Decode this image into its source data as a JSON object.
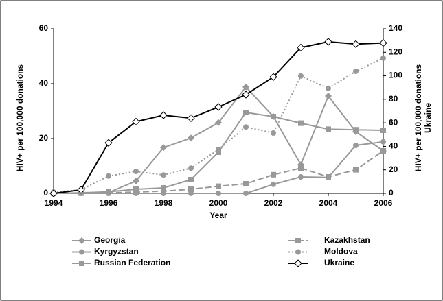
{
  "chart_data": {
    "type": "line",
    "xlabel": "Year",
    "ylabel": "HIV+ per 100,000 donations",
    "y2label": [
      "HIV+ per 100,000 donations",
      "Ukraine"
    ],
    "x": [
      1994,
      1995,
      1996,
      1997,
      1998,
      1999,
      2000,
      2001,
      2002,
      2003,
      2004,
      2005,
      2006
    ],
    "xlim": [
      1994,
      2006
    ],
    "xticks": [
      1994,
      1996,
      1998,
      2000,
      2002,
      2004,
      2006
    ],
    "ylim": [
      0,
      60
    ],
    "yticks": [
      0,
      20,
      40,
      60
    ],
    "y2lim": [
      0,
      140
    ],
    "y2ticks": [
      0,
      20,
      40,
      60,
      80,
      100,
      120,
      140
    ],
    "grid": false,
    "series": [
      {
        "name": "Georgia",
        "color": "#999999",
        "marker": "diamond",
        "dash": "solid",
        "values": [
          0,
          0.2,
          0.3,
          4.5,
          16.7,
          20.2,
          25.8,
          38.8,
          28,
          10.5,
          35.5,
          22.5,
          15.5
        ]
      },
      {
        "name": "Kazakhstan",
        "color": "#999999",
        "marker": "square",
        "dash": "dashed",
        "values": [
          0,
          0.1,
          0.2,
          0.5,
          0.8,
          1.5,
          2.6,
          3.5,
          6.8,
          9.2,
          6,
          8.6,
          15.5
        ]
      },
      {
        "name": "Kyrgyzstan",
        "color": "#999999",
        "marker": "circle",
        "dash": "solid",
        "values": [
          0,
          0,
          0,
          0,
          0,
          0,
          0,
          0,
          3.3,
          6,
          5.8,
          17.5,
          18.8
        ]
      },
      {
        "name": "Moldova",
        "color": "#999999",
        "marker": "circle",
        "dash": "dotted",
        "values": [
          0.5,
          1.3,
          6.3,
          8,
          6.7,
          9.2,
          16,
          24.2,
          22,
          42.8,
          38.3,
          44.5,
          49.3
        ]
      },
      {
        "name": "Russian Federation",
        "color": "#999999",
        "marker": "square",
        "dash": "solid",
        "values": [
          0,
          0.2,
          0.6,
          1.5,
          2,
          5,
          15,
          29.5,
          28,
          25.6,
          23.4,
          23.2,
          23
        ]
      },
      {
        "name": "Ukraine",
        "color": "#000000",
        "marker": "open-diamond",
        "dash": "solid",
        "axis": "y2",
        "values": [
          0,
          3,
          43,
          61,
          66.5,
          64,
          73.5,
          84,
          99,
          124,
          129,
          127,
          128
        ]
      }
    ]
  }
}
